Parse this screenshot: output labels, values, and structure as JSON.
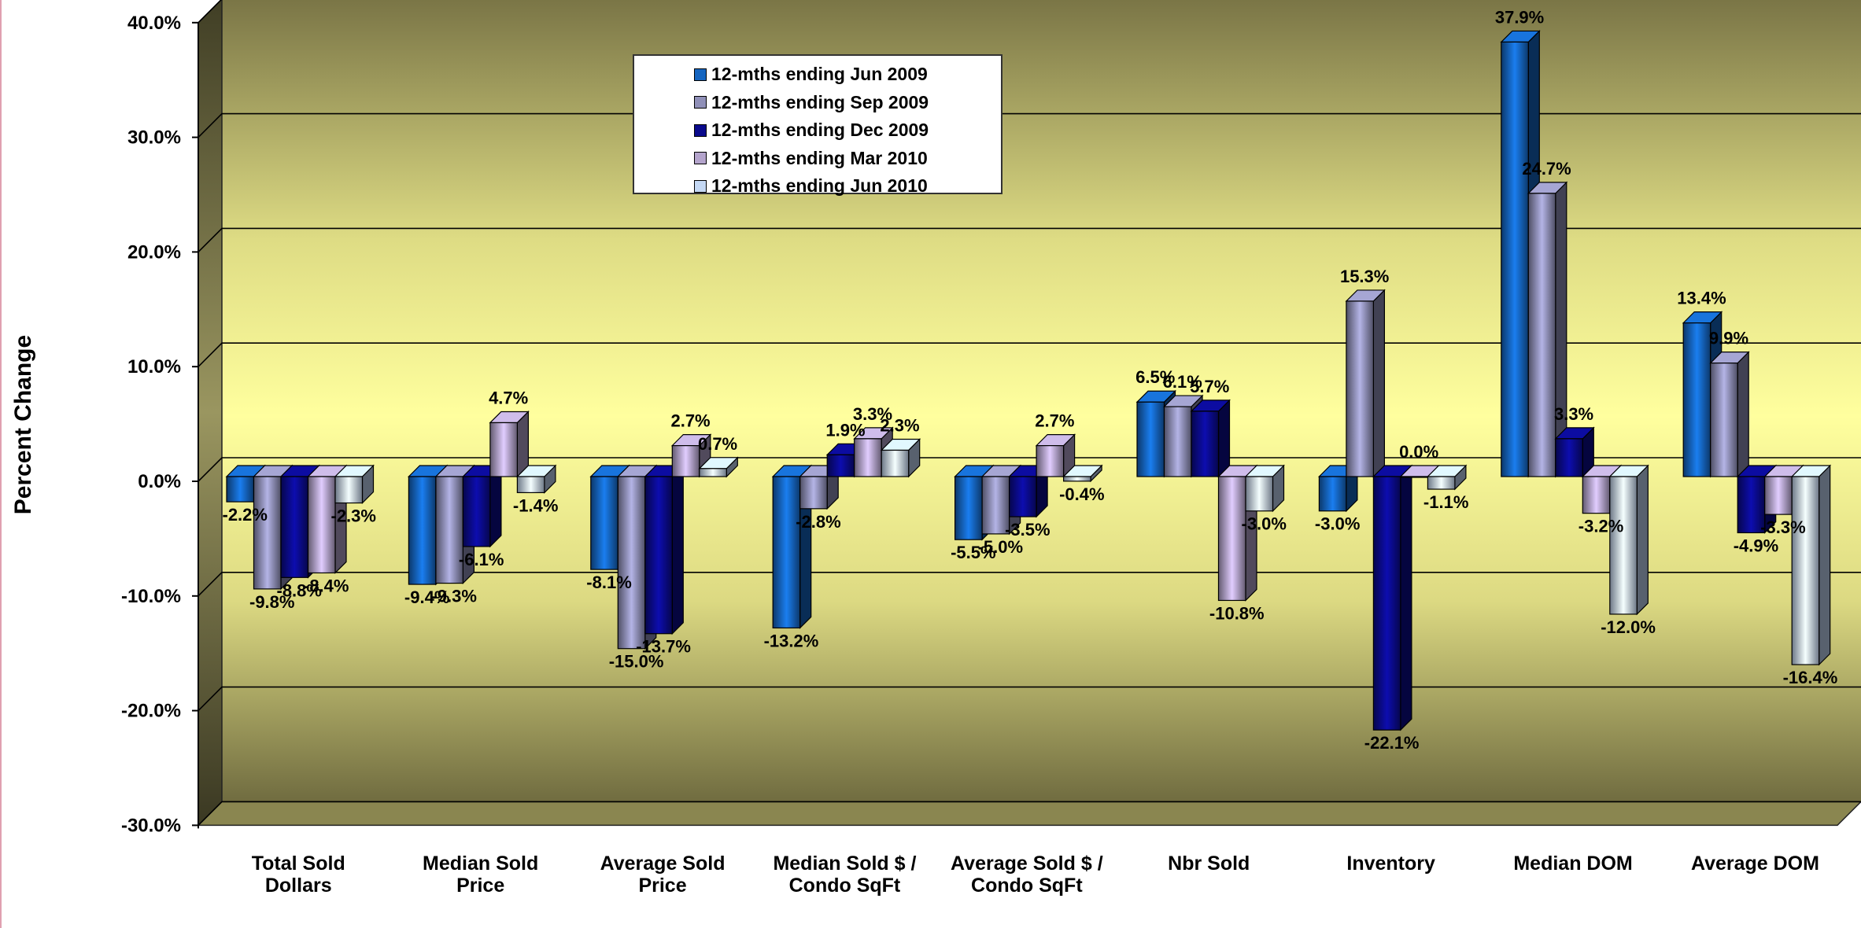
{
  "chart_data": {
    "type": "bar",
    "ylabel": "Percent Change",
    "xlabel": "",
    "ylim": [
      -30,
      40
    ],
    "y_ticks": [
      "-30.0%",
      "-20.0%",
      "-10.0%",
      "0.0%",
      "10.0%",
      "20.0%",
      "30.0%",
      "40.0%"
    ],
    "grid": true,
    "legend_position": "top-center",
    "style": "3d-clustered-column",
    "categories": [
      [
        "Total Sold",
        "Dollars"
      ],
      [
        "Median Sold",
        "Price"
      ],
      [
        "Average Sold",
        "Price"
      ],
      [
        "Median Sold $ /",
        "Condo SqFt"
      ],
      [
        "Average Sold $ /",
        "Condo SqFt"
      ],
      [
        "Nbr Sold"
      ],
      [
        "Inventory"
      ],
      [
        "Median DOM"
      ],
      [
        "Average DOM"
      ]
    ],
    "series": [
      {
        "name": "12-mths ending Jun 2009",
        "color": "#1565c0",
        "values": [
          -2.2,
          -9.4,
          -8.1,
          -13.2,
          -5.5,
          6.5,
          -3.0,
          37.9,
          13.4
        ],
        "labels": [
          "-2.2%",
          "-9.4%",
          "-8.1%",
          "-13.2%",
          "-5.5%",
          "6.5%",
          "-3.0%",
          "37.9%",
          "13.4%"
        ]
      },
      {
        "name": "12-mths ending Sep 2009",
        "color": "#9090b8",
        "values": [
          -9.8,
          -9.3,
          -15.0,
          -2.8,
          -5.0,
          6.1,
          15.3,
          24.7,
          9.9
        ],
        "labels": [
          "-9.8%",
          "-9.3%",
          "-15.0%",
          "-2.8%",
          "-5.0%",
          "6.1%",
          "15.3%",
          "24.7%",
          "9.9%"
        ]
      },
      {
        "name": "12-mths ending Dec 2009",
        "color": "#0a0a8c",
        "values": [
          -8.8,
          -6.1,
          -13.7,
          1.9,
          -3.5,
          5.7,
          -22.1,
          3.3,
          -4.9
        ],
        "labels": [
          "-8.8%",
          "-6.1%",
          "-13.7%",
          "1.9%",
          "-3.5%",
          "5.7%",
          "-22.1%",
          "3.3%",
          "-4.9%"
        ]
      },
      {
        "name": "12-mths ending Mar 2010",
        "color": "#b4a4cc",
        "values": [
          -8.4,
          4.7,
          2.7,
          3.3,
          2.7,
          -10.8,
          0.0,
          -3.2,
          -3.3
        ],
        "labels": [
          "-8.4%",
          "4.7%",
          "2.7%",
          "3.3%",
          "2.7%",
          "-10.8%",
          "0.0%",
          "-3.2%",
          "-3.3%"
        ]
      },
      {
        "name": "12-mths ending Jun 2010",
        "color": "#c4d8f4",
        "values": [
          -2.3,
          -1.4,
          0.7,
          2.3,
          -0.4,
          -3.0,
          -1.1,
          -12.0,
          -16.4
        ],
        "labels": [
          "-2.3%",
          "-1.4%",
          "0.7%",
          "2.3%",
          "-0.4%",
          "-3.0%",
          "-1.1%",
          "-12.0%",
          "-16.4%"
        ]
      }
    ]
  }
}
